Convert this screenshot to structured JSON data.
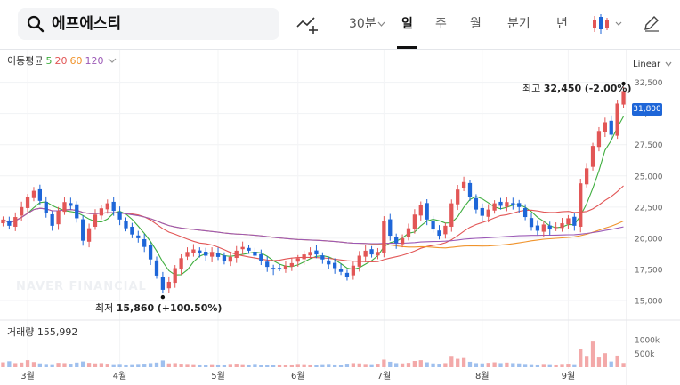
{
  "toolbar": {
    "search_value": "에프에스티",
    "interval_30m": "30분",
    "day": "일",
    "week": "주",
    "month": "월",
    "quarter": "분기",
    "year": "년"
  },
  "legend": {
    "title": "이동평균",
    "ma5": "5",
    "ma20": "20",
    "ma60": "60",
    "ma120": "120",
    "colors": {
      "ma5": "#3fae3f",
      "ma20": "#e25656",
      "ma60": "#f0932b",
      "ma120": "#9b59b6"
    }
  },
  "scale_type": "Linear",
  "annotations": {
    "high_label": "최고",
    "high_value": "32,450",
    "high_change": "(-2.00%)",
    "low_label": "최저",
    "low_value": "15,860",
    "low_change": "(+100.50%)"
  },
  "current_price": "31,800",
  "watermark": "NAVER FINANCIAL",
  "volume": {
    "label": "거래량",
    "value": "155,992"
  },
  "chart_data": {
    "type": "candlestick",
    "price_axis_labels": [
      "32,500",
      "30,000",
      "27,500",
      "25,000",
      "22,500",
      "20,000",
      "17,500",
      "15,000"
    ],
    "price_axis_values": [
      32500,
      30000,
      27500,
      25000,
      22500,
      20000,
      17500,
      15000
    ],
    "ylim": [
      14000,
      33400
    ],
    "volume_axis_labels": [
      "1000k",
      "500k"
    ],
    "volume_axis_values": [
      1000000,
      500000
    ],
    "volume_max": 1250000,
    "month_labels": [
      "3월",
      "4월",
      "5월",
      "6월",
      "7월",
      "8월",
      "9월"
    ],
    "month_index": [
      4,
      19,
      35,
      48,
      62,
      78,
      92
    ],
    "colors": {
      "up": "#e25656",
      "down": "#1e66d8"
    },
    "closes": [
      21500,
      21000,
      21700,
      22500,
      23300,
      23800,
      23000,
      22000,
      21000,
      22200,
      22900,
      22600,
      21600,
      19800,
      20800,
      21900,
      22400,
      22800,
      22200,
      21500,
      20800,
      20300,
      20000,
      19300,
      18300,
      17000,
      15860,
      16500,
      17600,
      18400,
      18900,
      19100,
      18800,
      18600,
      18900,
      18500,
      18200,
      18500,
      19000,
      19300,
      19000,
      18600,
      18200,
      17700,
      17500,
      17600,
      17800,
      18000,
      18400,
      18700,
      18900,
      18700,
      18300,
      17900,
      17600,
      17300,
      16900,
      17800,
      18600,
      19000,
      18700,
      18900,
      21400,
      20200,
      19600,
      20000,
      20800,
      21900,
      22700,
      21500,
      20700,
      20200,
      21000,
      22800,
      23900,
      24500,
      23300,
      22300,
      21800,
      22300,
      22800,
      22600,
      22900,
      22700,
      22500,
      21700,
      20900,
      20600,
      21100,
      20700,
      20900,
      21200,
      21600,
      21000,
      24400,
      25600,
      27400,
      28600,
      29300,
      28300,
      30800,
      31800
    ],
    "volumes": [
      180000,
      220000,
      150000,
      170000,
      260000,
      190000,
      140000,
      120000,
      110000,
      160000,
      150000,
      130000,
      170000,
      210000,
      160000,
      140000,
      150000,
      130000,
      110000,
      120000,
      100000,
      110000,
      120000,
      130000,
      150000,
      170000,
      250000,
      140000,
      150000,
      130000,
      120000,
      110000,
      100000,
      90000,
      110000,
      100000,
      90000,
      120000,
      130000,
      110000,
      100000,
      120000,
      90000,
      80000,
      90000,
      100000,
      90000,
      100000,
      120000,
      110000,
      100000,
      90000,
      110000,
      120000,
      100000,
      90000,
      130000,
      150000,
      140000,
      120000,
      110000,
      130000,
      280000,
      200000,
      150000,
      140000,
      160000,
      230000,
      260000,
      180000,
      140000,
      130000,
      150000,
      420000,
      310000,
      340000,
      200000,
      150000,
      140000,
      160000,
      180000,
      150000,
      170000,
      150000,
      140000,
      120000,
      110000,
      100000,
      120000,
      110000,
      100000,
      120000,
      130000,
      110000,
      680000,
      420000,
      950000,
      360000,
      520000,
      210000,
      430000,
      155992
    ]
  }
}
